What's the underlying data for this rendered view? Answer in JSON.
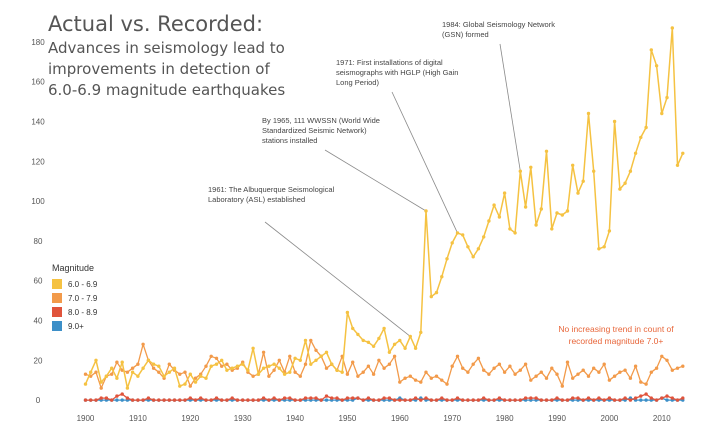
{
  "title": "Actual vs. Recorded:",
  "subtitle": "Advances in seismology lead to improvements in detection of 6.0-6.9 magnitude earthquakes",
  "legend": {
    "title": "Magnitude",
    "placement": "left-middle",
    "items": [
      {
        "label": "6.0 - 6.9",
        "color": "#f5c242"
      },
      {
        "label": "7.0 - 7.9",
        "color": "#f29a4a"
      },
      {
        "label": "8.0 - 8.9",
        "color": "#e0533b"
      },
      {
        "label": "9.0+",
        "color": "#3c8fc8"
      }
    ]
  },
  "annotations": {
    "a1961": "1961: The Albuquerque Seismological Laboratory (ASL) established",
    "a1965": "By 1965, 111 WWSSN (World Wide Standardized Seismic Network) stations installed",
    "a1971": "1971: First installations of digital seismographs with HGLP (High Gain Long Period)",
    "a1984": "1984: Global Seismology Network (GSN) formed"
  },
  "note": "No increasing trend in count of recorded magnitude 7.0+",
  "chart_data": {
    "type": "line",
    "x_ticks": [
      1900,
      1910,
      1920,
      1930,
      1940,
      1950,
      1960,
      1970,
      1980,
      1990,
      2000,
      2010
    ],
    "y_ticks": [
      0,
      20,
      40,
      60,
      80,
      100,
      120,
      140,
      160,
      180
    ],
    "xlim": [
      1898,
      2015
    ],
    "ylim": [
      -5,
      190
    ],
    "grid": false,
    "x_start": 1900,
    "series": [
      {
        "name": "6.0 - 6.9",
        "color": "#f5c242",
        "values": [
          8,
          14,
          20,
          9,
          12,
          16,
          11,
          19,
          6,
          14,
          12,
          16,
          20,
          18,
          17,
          12,
          14,
          16,
          7,
          8,
          13,
          9,
          12,
          11,
          17,
          18,
          20,
          15,
          16,
          17,
          18,
          15,
          26,
          13,
          16,
          17,
          18,
          16,
          13,
          14,
          21,
          20,
          30,
          18,
          20,
          22,
          24,
          18,
          15,
          14,
          44,
          36,
          33,
          30,
          29,
          27,
          31,
          36,
          24,
          28,
          30,
          26,
          32,
          26,
          34,
          95,
          52,
          54,
          62,
          71,
          79,
          84,
          83,
          77,
          72,
          76,
          82,
          90,
          98,
          92,
          104,
          86,
          84,
          115,
          97,
          117,
          88,
          96,
          125,
          86,
          94,
          93,
          95,
          118,
          104,
          110,
          144,
          115,
          76,
          77,
          85,
          140,
          106,
          109,
          115,
          124,
          132,
          137,
          176,
          168,
          144,
          152,
          187,
          118,
          124
        ]
      },
      {
        "name": "7.0 - 7.9",
        "color": "#f29a4a",
        "values": [
          13,
          12,
          14,
          6,
          12,
          13,
          19,
          15,
          14,
          16,
          18,
          28,
          20,
          16,
          14,
          11,
          18,
          15,
          13,
          14,
          7,
          11,
          13,
          17,
          22,
          21,
          17,
          18,
          15,
          16,
          19,
          14,
          12,
          13,
          24,
          12,
          15,
          20,
          14,
          22,
          14,
          12,
          18,
          30,
          25,
          22,
          16,
          18,
          15,
          22,
          13,
          19,
          12,
          14,
          17,
          13,
          20,
          16,
          18,
          22,
          9,
          11,
          12,
          10,
          9,
          14,
          11,
          12,
          10,
          8,
          17,
          22,
          16,
          14,
          18,
          21,
          15,
          13,
          16,
          18,
          14,
          17,
          13,
          15,
          18,
          10,
          12,
          14,
          11,
          16,
          13,
          7,
          19,
          11,
          13,
          15,
          12,
          16,
          14,
          18,
          10,
          12,
          14,
          15,
          11,
          17,
          9,
          8,
          14,
          16,
          22,
          20,
          15,
          16,
          17
        ]
      },
      {
        "name": "8.0 - 8.9",
        "color": "#e0533b",
        "values": [
          0,
          0,
          0,
          1,
          1,
          0,
          2,
          3,
          1,
          0,
          0,
          0,
          1,
          0,
          0,
          0,
          0,
          0,
          0,
          0,
          1,
          0,
          1,
          0,
          0,
          1,
          0,
          0,
          1,
          0,
          0,
          0,
          0,
          0,
          1,
          0,
          1,
          0,
          1,
          1,
          0,
          0,
          1,
          1,
          1,
          0,
          2,
          1,
          1,
          0,
          1,
          1,
          1,
          0,
          1,
          0,
          0,
          1,
          1,
          0,
          0,
          0,
          0,
          1,
          0,
          1,
          0,
          0,
          1,
          0,
          0,
          1,
          0,
          0,
          0,
          0,
          1,
          0,
          0,
          1,
          0,
          0,
          0,
          0,
          1,
          1,
          1,
          0,
          0,
          0,
          1,
          0,
          0,
          1,
          1,
          0,
          1,
          0,
          1,
          0,
          1,
          0,
          0,
          1,
          0,
          1,
          2,
          3,
          1,
          0,
          1,
          2,
          1,
          0,
          1
        ]
      },
      {
        "name": "9.0+",
        "color": "#3c8fc8",
        "values": [
          0,
          0,
          0,
          0,
          0,
          0,
          0,
          0,
          0,
          0,
          0,
          0,
          0,
          0,
          0,
          0,
          0,
          0,
          0,
          0,
          0,
          0,
          0,
          0,
          0,
          0,
          0,
          0,
          0,
          0,
          0,
          0,
          0,
          0,
          0,
          0,
          0,
          0,
          0,
          0,
          0,
          0,
          0,
          0,
          0,
          0,
          0,
          0,
          0,
          0,
          0,
          0,
          1,
          0,
          0,
          0,
          0,
          0,
          0,
          0,
          1,
          0,
          0,
          0,
          1,
          0,
          0,
          0,
          0,
          0,
          0,
          0,
          0,
          0,
          0,
          0,
          0,
          0,
          0,
          0,
          0,
          0,
          0,
          0,
          0,
          0,
          0,
          0,
          0,
          0,
          0,
          0,
          0,
          0,
          0,
          0,
          0,
          0,
          0,
          0,
          0,
          0,
          0,
          0,
          1,
          0,
          0,
          0,
          0,
          0,
          1,
          0,
          0,
          0,
          0
        ]
      }
    ]
  }
}
